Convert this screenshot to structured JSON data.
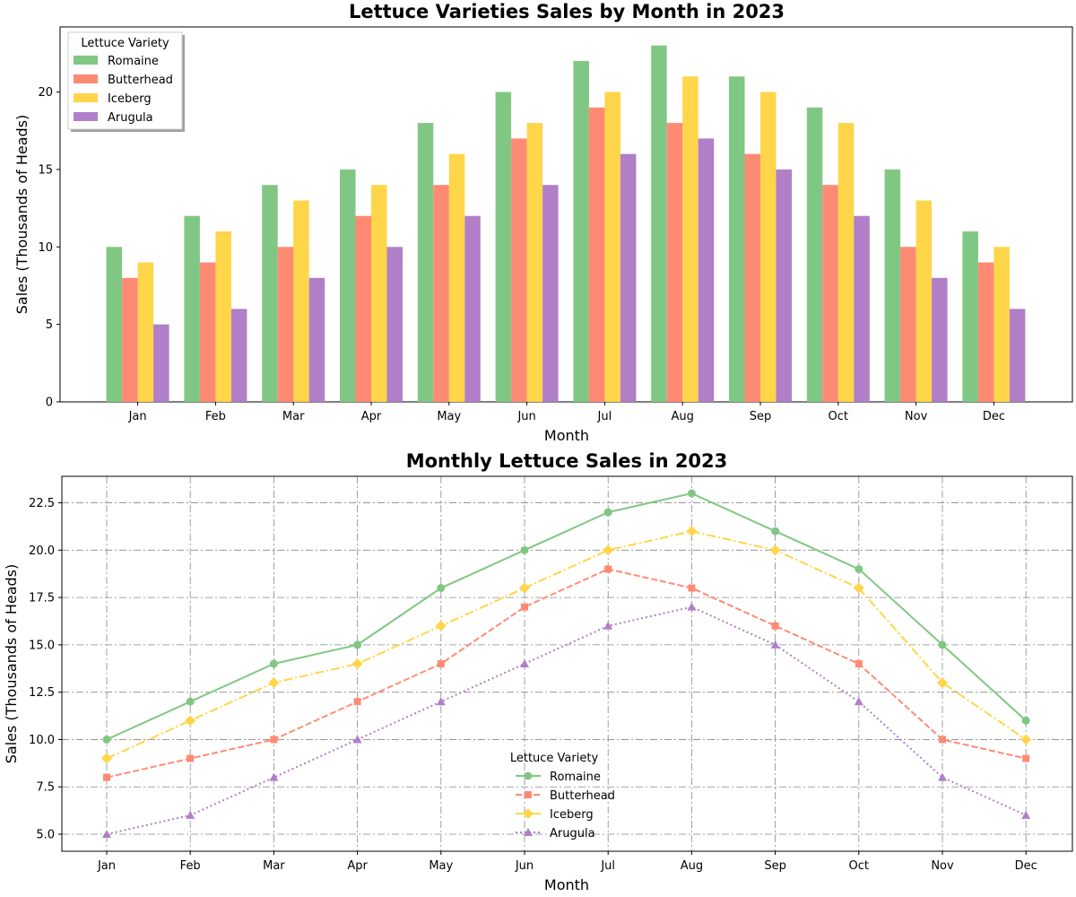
{
  "chart_data": [
    {
      "type": "bar",
      "title": "Lettuce Varieties Sales by Month in 2023",
      "xlabel": "Month",
      "ylabel": "Sales (Thousands of Heads)",
      "categories": [
        "Jan",
        "Feb",
        "Mar",
        "Apr",
        "May",
        "Jun",
        "Jul",
        "Aug",
        "Sep",
        "Oct",
        "Nov",
        "Dec"
      ],
      "ylim": [
        0,
        24.2
      ],
      "yticks": [
        "0",
        "5",
        "10",
        "15",
        "20"
      ],
      "grid": false,
      "legend": {
        "title": "Lettuce Variety",
        "position": "top-left"
      },
      "series": [
        {
          "name": "Romaine",
          "color": "#81c784",
          "values": [
            10,
            12,
            14,
            15,
            18,
            20,
            22,
            23,
            21,
            19,
            15,
            11
          ]
        },
        {
          "name": "Butterhead",
          "color": "#ff8a73",
          "values": [
            8,
            9,
            10,
            12,
            14,
            17,
            19,
            18,
            16,
            14,
            10,
            9
          ]
        },
        {
          "name": "Iceberg",
          "color": "#ffd54a",
          "values": [
            9,
            11,
            13,
            14,
            16,
            18,
            20,
            21,
            20,
            18,
            13,
            10
          ]
        },
        {
          "name": "Arugula",
          "color": "#b07fc8",
          "values": [
            5,
            6,
            8,
            10,
            12,
            14,
            16,
            17,
            15,
            12,
            8,
            6
          ]
        }
      ]
    },
    {
      "type": "line",
      "title": "Monthly Lettuce Sales in 2023",
      "xlabel": "Month",
      "ylabel": "Sales (Thousands of Heads)",
      "categories": [
        "Jan",
        "Feb",
        "Mar",
        "Apr",
        "May",
        "Jun",
        "Jul",
        "Aug",
        "Sep",
        "Oct",
        "Nov",
        "Dec"
      ],
      "ylim": [
        4.1,
        23.9
      ],
      "yticks": [
        "5.0",
        "7.5",
        "10.0",
        "12.5",
        "15.0",
        "17.5",
        "20.0",
        "22.5"
      ],
      "grid": true,
      "legend": {
        "title": "Lettuce Variety",
        "position": "bottom-center"
      },
      "series": [
        {
          "name": "Romaine",
          "color": "#81c784",
          "marker": "circle",
          "linestyle": "solid",
          "values": [
            10,
            12,
            14,
            15,
            18,
            20,
            22,
            23,
            21,
            19,
            15,
            11
          ]
        },
        {
          "name": "Butterhead",
          "color": "#ff8a73",
          "marker": "square",
          "linestyle": "dashed",
          "values": [
            8,
            9,
            10,
            12,
            14,
            17,
            19,
            18,
            16,
            14,
            10,
            9
          ]
        },
        {
          "name": "Iceberg",
          "color": "#ffd54a",
          "marker": "diamond",
          "linestyle": "dashdot",
          "values": [
            9,
            11,
            13,
            14,
            16,
            18,
            20,
            21,
            20,
            18,
            13,
            10
          ]
        },
        {
          "name": "Arugula",
          "color": "#b07fc8",
          "marker": "triangle",
          "linestyle": "dotted",
          "values": [
            5,
            6,
            8,
            10,
            12,
            14,
            16,
            17,
            15,
            12,
            8,
            6
          ]
        }
      ]
    }
  ]
}
